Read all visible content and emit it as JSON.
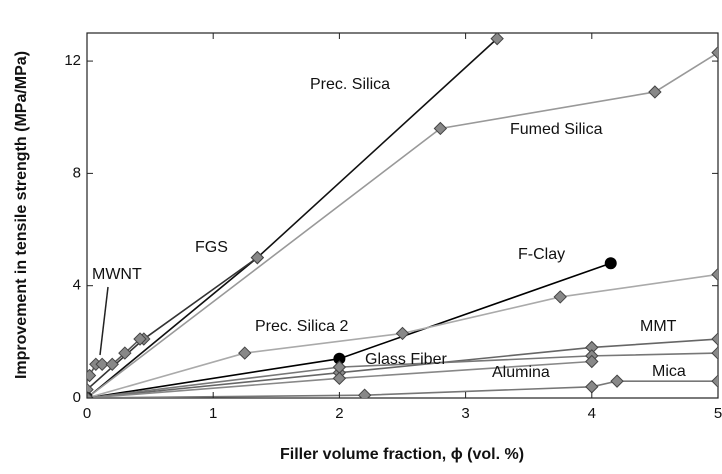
{
  "chart_data": {
    "type": "line",
    "xlabel": "Filler volume fraction, ϕ (vol. %)",
    "ylabel": "Improvement in tensile strength (MPa/MPa)",
    "xlim": [
      0,
      5
    ],
    "xticks": [
      0,
      1,
      2,
      3,
      4,
      5
    ],
    "ylim": [
      0,
      13
    ],
    "yticks": [
      0,
      4,
      8,
      12
    ],
    "series": [
      {
        "name": "Prec. Silica",
        "color": "#111111",
        "marker": "diamond",
        "x": [
          0,
          1.35,
          3.25
        ],
        "values": [
          0,
          5.0,
          12.8
        ]
      },
      {
        "name": "Fumed Silica",
        "color": "#999999",
        "marker": "diamond",
        "x": [
          0,
          2.8,
          4.5,
          5
        ],
        "values": [
          0,
          9.6,
          10.9,
          12.3
        ]
      },
      {
        "name": "FGS",
        "color": "#333333",
        "marker": "diamond",
        "x": [
          0,
          0.45,
          1.35
        ],
        "values": [
          0.3,
          2.1,
          5.0
        ]
      },
      {
        "name": "MWNT",
        "color": "#555555",
        "marker": "diamond",
        "x": [
          0.02,
          0.07,
          0.12,
          0.2,
          0.3,
          0.42
        ],
        "values": [
          0.8,
          1.2,
          1.2,
          1.2,
          1.6,
          2.1
        ]
      },
      {
        "name": "F-Clay",
        "color": "#000000",
        "marker": "circle",
        "x": [
          0,
          2,
          4.15
        ],
        "values": [
          0,
          1.4,
          4.8
        ]
      },
      {
        "name": "Prec. Silica 2",
        "color": "#aaaaaa",
        "marker": "diamond",
        "x": [
          0,
          1.25,
          2.5,
          3.75,
          5
        ],
        "values": [
          0,
          1.6,
          2.3,
          3.6,
          4.4
        ]
      },
      {
        "name": "MMT",
        "color": "#666666",
        "marker": "diamond",
        "x": [
          0,
          2,
          4,
          5
        ],
        "values": [
          0,
          0.9,
          1.8,
          2.1
        ]
      },
      {
        "name": "Glass Fiber",
        "color": "#777777",
        "marker": "diamond",
        "x": [
          0,
          2,
          4,
          5
        ],
        "values": [
          0,
          1.1,
          1.5,
          1.6
        ]
      },
      {
        "name": "Alumina",
        "color": "#888888",
        "marker": "diamond",
        "x": [
          0,
          2,
          4
        ],
        "values": [
          0,
          0.7,
          1.3
        ]
      },
      {
        "name": "Mica",
        "color": "#777777",
        "marker": "diamond",
        "x": [
          0,
          2.2,
          4,
          4.2,
          5
        ],
        "values": [
          0,
          0.1,
          0.4,
          0.6,
          0.6
        ]
      }
    ]
  }
}
